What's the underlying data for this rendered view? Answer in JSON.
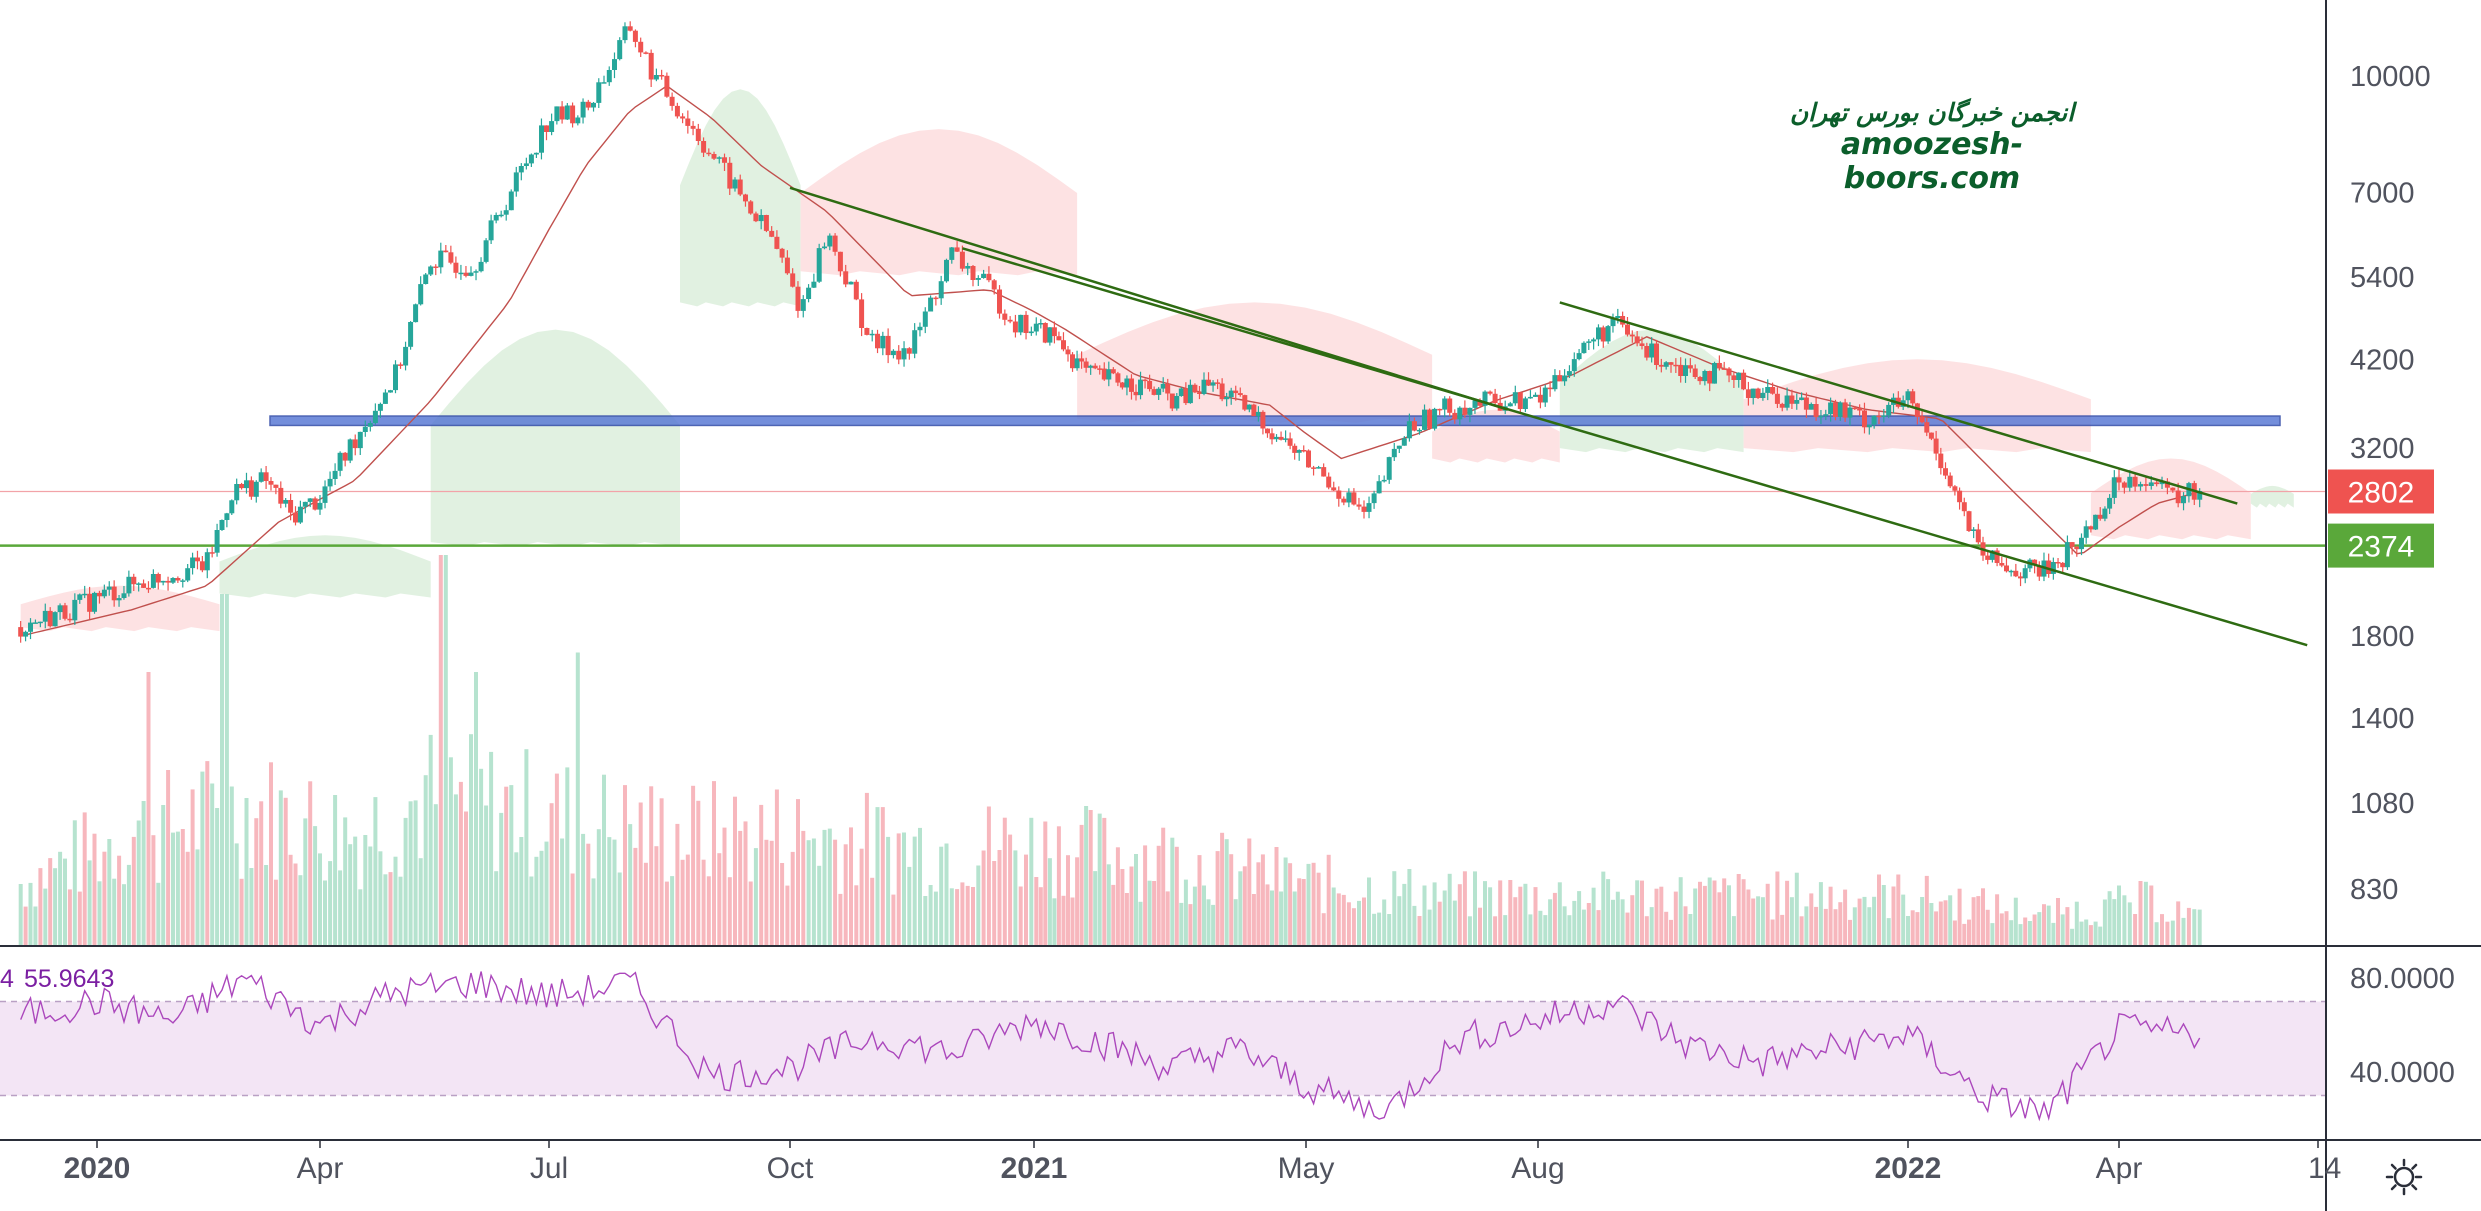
{
  "watermark": {
    "line1": "انجمن خبرگان بورس تهران",
    "line2": "amoozesh-boors.com"
  },
  "colors": {
    "up": "#26a69a",
    "down": "#ef5350",
    "up_volume": "#b6e3cf",
    "down_volume": "#f7b7bd",
    "cloud_green": "#dff0df",
    "cloud_red": "#fde0e2",
    "kijun": "#c0504d",
    "resistance_band": "#5b7bd5",
    "support_line": "#5aa83a",
    "channel": "#2e6b12",
    "rsi_line": "#ab47bc",
    "rsi_band": "#f3e5f5",
    "price_badge": "#ef5350",
    "support_badge": "#5aa83a"
  },
  "chart_data": [
    {
      "type": "candlestick",
      "title": "",
      "x_ticks": [
        {
          "label": "2020",
          "bold": true
        },
        {
          "label": "Apr",
          "bold": false
        },
        {
          "label": "Jul",
          "bold": false
        },
        {
          "label": "Oct",
          "bold": false
        },
        {
          "label": "2021",
          "bold": true
        },
        {
          "label": "May",
          "bold": false
        },
        {
          "label": "Aug",
          "bold": false
        },
        {
          "label": "2022",
          "bold": true
        },
        {
          "label": "Apr",
          "bold": false
        },
        {
          "label": "14",
          "bold": false
        }
      ],
      "y_scale": "log",
      "y_ticks": [
        "10000",
        "7000",
        "5400",
        "4200",
        "3200",
        "1800",
        "1400",
        "1080",
        "830"
      ],
      "y_tick_values": [
        10000,
        7000,
        5400,
        4200,
        3200,
        1800,
        1400,
        1080,
        830
      ],
      "ylim": [
        650,
        12500
      ],
      "price_path": [
        [
          "2019-12-01",
          1850
        ],
        [
          "2019-12-20",
          1950
        ],
        [
          "2020-01-05",
          2050
        ],
        [
          "2020-01-25",
          2150
        ],
        [
          "2020-02-15",
          2250
        ],
        [
          "2020-02-25",
          2800
        ],
        [
          "2020-03-10",
          2900
        ],
        [
          "2020-03-20",
          2600
        ],
        [
          "2020-04-01",
          2750
        ],
        [
          "2020-04-15",
          3300
        ],
        [
          "2020-05-01",
          4000
        ],
        [
          "2020-05-15",
          5700
        ],
        [
          "2020-06-01",
          5600
        ],
        [
          "2020-06-20",
          7500
        ],
        [
          "2020-07-01",
          8800
        ],
        [
          "2020-07-15",
          9000
        ],
        [
          "2020-08-01",
          11600
        ],
        [
          "2020-08-10",
          10000
        ],
        [
          "2020-08-25",
          8500
        ],
        [
          "2020-09-10",
          7100
        ],
        [
          "2020-09-25",
          6000
        ],
        [
          "2020-10-05",
          4900
        ],
        [
          "2020-10-15",
          6200
        ],
        [
          "2020-11-01",
          4400
        ],
        [
          "2020-11-15",
          4300
        ],
        [
          "2020-12-01",
          5800
        ],
        [
          "2020-12-15",
          5200
        ],
        [
          "2020-12-25",
          4700
        ],
        [
          "2021-01-10",
          4500
        ],
        [
          "2021-01-25",
          4000
        ],
        [
          "2021-02-15",
          3900
        ],
        [
          "2021-03-05",
          3700
        ],
        [
          "2021-03-20",
          3900
        ],
        [
          "2021-04-10",
          3500
        ],
        [
          "2021-04-25",
          3200
        ],
        [
          "2021-05-10",
          2900
        ],
        [
          "2021-05-25",
          2600
        ],
        [
          "2021-06-10",
          3400
        ],
        [
          "2021-06-25",
          3600
        ],
        [
          "2021-07-15",
          3700
        ],
        [
          "2021-08-01",
          3700
        ],
        [
          "2021-08-15",
          4200
        ],
        [
          "2021-09-01",
          4700
        ],
        [
          "2021-09-15",
          4300
        ],
        [
          "2021-10-01",
          4100
        ],
        [
          "2021-10-15",
          4000
        ],
        [
          "2021-11-01",
          3800
        ],
        [
          "2021-11-15",
          3700
        ],
        [
          "2021-12-01",
          3600
        ],
        [
          "2021-12-15",
          3500
        ],
        [
          "2022-01-01",
          3700
        ],
        [
          "2022-01-15",
          3100
        ],
        [
          "2022-02-01",
          2300
        ],
        [
          "2022-02-15",
          2200
        ],
        [
          "2022-03-01",
          2200
        ],
        [
          "2022-03-15",
          2400
        ],
        [
          "2022-04-01",
          2900
        ],
        [
          "2022-04-10",
          2950
        ],
        [
          "2022-04-20",
          2750
        ],
        [
          "2022-05-01",
          2802
        ]
      ],
      "kijun_path": [
        [
          "2019-12-01",
          1800
        ],
        [
          "2020-01-15",
          1950
        ],
        [
          "2020-02-15",
          2100
        ],
        [
          "2020-03-15",
          2550
        ],
        [
          "2020-04-15",
          2900
        ],
        [
          "2020-05-15",
          3700
        ],
        [
          "2020-06-15",
          5000
        ],
        [
          "2020-07-15",
          7600
        ],
        [
          "2020-08-01",
          9000
        ],
        [
          "2020-08-15",
          9700
        ],
        [
          "2020-09-01",
          8800
        ],
        [
          "2020-09-20",
          7600
        ],
        [
          "2020-10-15",
          6600
        ],
        [
          "2020-11-15",
          5100
        ],
        [
          "2020-12-15",
          5200
        ],
        [
          "2021-01-15",
          4600
        ],
        [
          "2021-02-15",
          4000
        ],
        [
          "2021-03-15",
          3800
        ],
        [
          "2021-04-15",
          3650
        ],
        [
          "2021-05-15",
          3100
        ],
        [
          "2021-06-15",
          3350
        ],
        [
          "2021-07-15",
          3700
        ],
        [
          "2021-08-15",
          4000
        ],
        [
          "2021-09-15",
          4500
        ],
        [
          "2021-10-15",
          4100
        ],
        [
          "2021-11-15",
          3800
        ],
        [
          "2021-12-15",
          3600
        ],
        [
          "2022-01-15",
          3500
        ],
        [
          "2022-02-15",
          2800
        ],
        [
          "2022-03-15",
          2300
        ],
        [
          "2022-04-15",
          2700
        ],
        [
          "2022-05-01",
          2800
        ]
      ],
      "ichimoku_cloud": [
        {
          "color": "red",
          "start": "2019-12-01",
          "end": "2020-02-20",
          "upper": 2100,
          "lower": 1850
        },
        {
          "color": "green",
          "start": "2020-02-20",
          "end": "2020-05-15",
          "upper": 2450,
          "lower": 2050
        },
        {
          "color": "green",
          "start": "2020-05-15",
          "end": "2020-08-20",
          "upper": 4600,
          "lower": 2400
        },
        {
          "color": "green",
          "start": "2020-08-20",
          "end": "2020-10-05",
          "upper": 9600,
          "lower": 5000
        },
        {
          "color": "red",
          "start": "2020-10-05",
          "end": "2021-01-20",
          "upper": 8500,
          "lower": 5500
        },
        {
          "color": "red",
          "start": "2021-01-20",
          "end": "2021-06-20",
          "upper": 5000,
          "lower": 3500
        },
        {
          "color": "red",
          "start": "2021-06-20",
          "end": "2021-08-10",
          "upper": 3600,
          "lower": 3100
        },
        {
          "color": "green",
          "start": "2021-08-10",
          "end": "2021-10-25",
          "upper": 4600,
          "lower": 3200
        },
        {
          "color": "red",
          "start": "2021-10-25",
          "end": "2022-03-20",
          "upper": 4200,
          "lower": 3200
        },
        {
          "color": "red",
          "start": "2022-03-20",
          "end": "2022-05-20",
          "upper": 3100,
          "lower": 2450
        },
        {
          "color": "green",
          "start": "2022-05-20",
          "end": "2022-06-05",
          "upper": 2850,
          "lower": 2700
        }
      ],
      "horizontal_levels": {
        "resistance_zone": [
          3430,
          3530
        ],
        "support": 2374,
        "last_price": 2802
      },
      "trendlines": [
        {
          "from": [
            "2020-10-01",
            7100
          ],
          "to": [
            "2021-07-20",
            3600
          ]
        },
        {
          "from": [
            "2020-12-05",
            5900
          ],
          "to": [
            "2022-06-10",
            1750
          ]
        },
        {
          "from": [
            "2021-08-10",
            5000
          ],
          "to": [
            "2022-05-15",
            2700
          ]
        }
      ],
      "price_badges": [
        {
          "label": "2802",
          "value": 2802,
          "role": "last-price"
        },
        {
          "label": "2374",
          "value": 2374,
          "role": "support"
        }
      ],
      "volume_envelope": [
        [
          "2019-12-01",
          0.25
        ],
        [
          "2020-01-15",
          0.45
        ],
        [
          "2020-03-01",
          0.55
        ],
        [
          "2020-04-15",
          0.45
        ],
        [
          "2020-05-15",
          0.6
        ],
        [
          "2020-06-15",
          0.55
        ],
        [
          "2020-07-15",
          0.5
        ],
        [
          "2020-08-15",
          0.45
        ],
        [
          "2020-10-01",
          0.45
        ],
        [
          "2020-11-15",
          0.4
        ],
        [
          "2021-01-01",
          0.4
        ],
        [
          "2021-03-01",
          0.35
        ],
        [
          "2021-05-01",
          0.25
        ],
        [
          "2021-07-01",
          0.2
        ],
        [
          "2021-09-01",
          0.2
        ],
        [
          "2021-11-01",
          0.2
        ],
        [
          "2022-01-01",
          0.2
        ],
        [
          "2022-03-01",
          0.12
        ],
        [
          "2022-04-15",
          0.18
        ],
        [
          "2022-05-01",
          0.1
        ]
      ],
      "volume_spikes": [
        [
          "2020-05-20",
          1.0
        ],
        [
          "2020-02-22",
          0.9
        ],
        [
          "2020-07-12",
          0.75
        ],
        [
          "2020-06-02",
          0.7
        ],
        [
          "2020-01-22",
          0.7
        ]
      ],
      "legend": "none",
      "grid": false
    },
    {
      "type": "line",
      "title": "",
      "indicator_value": "55.9643",
      "y_ticks": [
        "80.0000",
        "40.0000"
      ],
      "y_tick_values": [
        80,
        40
      ],
      "ylim": [
        18,
        92
      ],
      "band": [
        30,
        70
      ],
      "x": [
        "2019-12-01",
        "2020-01-01",
        "2020-02-01",
        "2020-03-01",
        "2020-04-01",
        "2020-05-01",
        "2020-06-01",
        "2020-07-01",
        "2020-08-01",
        "2020-09-01",
        "2020-10-01",
        "2020-11-01",
        "2020-12-01",
        "2021-01-01",
        "2021-02-01",
        "2021-03-01",
        "2021-04-01",
        "2021-05-01",
        "2021-06-01",
        "2021-07-01",
        "2021-08-01",
        "2021-09-01",
        "2021-10-01",
        "2021-11-01",
        "2021-12-01",
        "2022-01-01",
        "2022-02-01",
        "2022-03-01",
        "2022-04-01",
        "2022-05-01"
      ],
      "values": [
        64,
        70,
        62,
        80,
        60,
        74,
        78,
        72,
        78,
        38,
        42,
        55,
        48,
        62,
        52,
        42,
        50,
        34,
        22,
        54,
        62,
        70,
        52,
        44,
        50,
        56,
        30,
        22,
        58,
        56
      ],
      "legend": "none",
      "grid": false
    }
  ]
}
